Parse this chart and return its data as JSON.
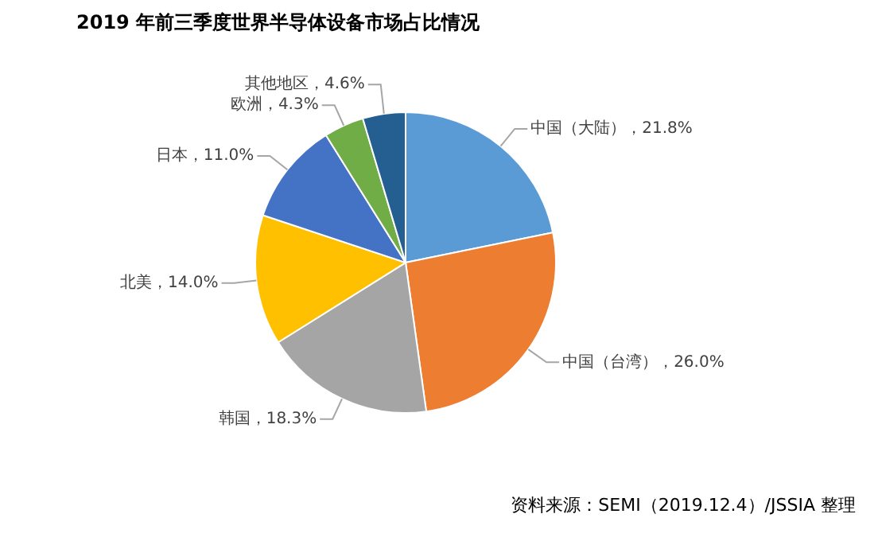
{
  "chart_data": {
    "type": "pie",
    "title": "2019 年前三季度世界半导体设备市场占比情况",
    "categories": [
      "中国（大陆）",
      "中国（台湾）",
      "韩国",
      "北美",
      "日本",
      "欧洲",
      "其他地区"
    ],
    "values": [
      21.8,
      26.0,
      18.3,
      14.0,
      11.0,
      4.3,
      4.6
    ],
    "value_labels": [
      "21.8%",
      "26.0%",
      "18.3%",
      "14.0%",
      "11.0%",
      "4.3%",
      "4.6%"
    ],
    "colors": [
      "#5b9bd5",
      "#ed7d31",
      "#a5a5a5",
      "#ffc000",
      "#4472c4",
      "#70ad47",
      "#255e91"
    ],
    "legend": false,
    "annotations": [
      "资料来源：SEMI（2019.12.4）/JSSIA 整理"
    ]
  }
}
